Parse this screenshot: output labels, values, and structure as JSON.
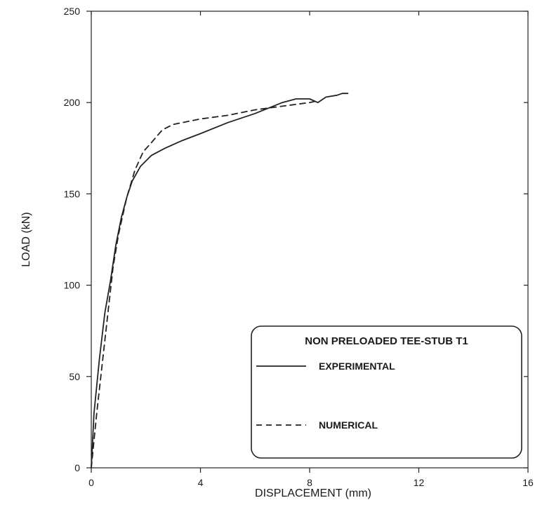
{
  "chart_data": {
    "type": "line",
    "title": "",
    "xlabel": "DISPLACEMENT (mm)",
    "ylabel": "LOAD (kN)",
    "xlim": [
      0,
      16
    ],
    "ylim": [
      0,
      250
    ],
    "xticks": [
      0,
      4,
      8,
      12,
      16
    ],
    "yticks": [
      0,
      50,
      100,
      150,
      200,
      250
    ],
    "grid": false,
    "legend": {
      "title": "NON PRELOADED TEE-STUB T1",
      "placement": "bottom-right"
    },
    "series": [
      {
        "name": "EXPERIMENTAL",
        "style": "solid",
        "x": [
          0,
          0.1,
          0.3,
          0.5,
          0.7,
          0.9,
          1.1,
          1.3,
          1.5,
          1.8,
          2.2,
          2.7,
          3.3,
          4.0,
          5.0,
          6.0,
          7.0,
          7.5,
          8.0,
          8.3,
          8.6,
          9.0,
          9.2,
          9.4
        ],
        "y": [
          0,
          30,
          60,
          85,
          102,
          122,
          137,
          148,
          157,
          165,
          171,
          175,
          179,
          183,
          189,
          194,
          200,
          202,
          202,
          200,
          203,
          204,
          205,
          205
        ]
      },
      {
        "name": "NUMERICAL",
        "style": "dashed",
        "x": [
          0,
          0.2,
          0.5,
          0.8,
          1.0,
          1.3,
          1.6,
          1.9,
          2.2,
          2.6,
          3.0,
          4.0,
          5.0,
          6.0,
          7.0,
          8.0,
          8.3
        ],
        "y": [
          0,
          30,
          70,
          110,
          128,
          148,
          163,
          173,
          178,
          185,
          188,
          191,
          193,
          196,
          198,
          200,
          201
        ]
      }
    ]
  }
}
